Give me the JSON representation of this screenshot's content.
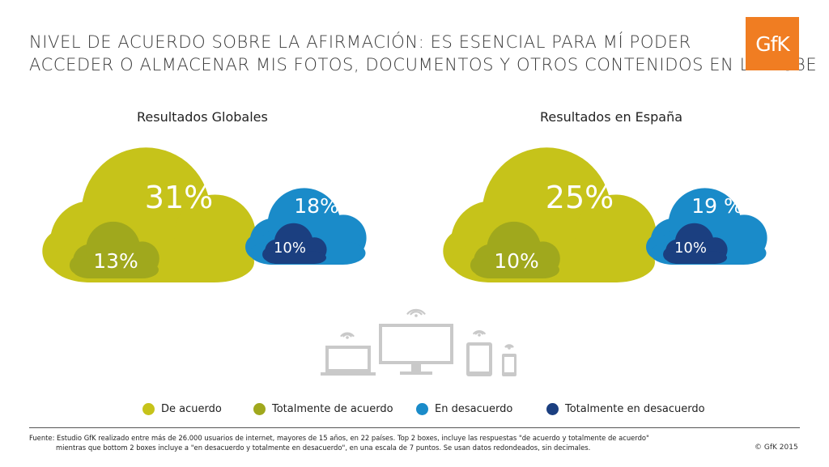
{
  "title": {
    "line1": "NIVEL DE ACUERDO SOBRE LA AFIRMACIÓN: ES ESENCIAL PARA MÍ PODER",
    "line2": "ACCEDER O ALMACENAR MIS FOTOS, DOCUMENTOS Y OTROS CONTENIDOS EN LA NUBE"
  },
  "logo": "GfK",
  "chart_data": [
    {
      "type": "other",
      "title": "Resultados Globales",
      "series": [
        {
          "name": "De acuerdo",
          "values": [
            31
          ],
          "label": "31%",
          "color": "#c6c31a"
        },
        {
          "name": "Totalmente de acuerdo",
          "values": [
            13
          ],
          "label": "13%",
          "color": "#a0a81d"
        },
        {
          "name": "En desacuerdo",
          "values": [
            18
          ],
          "label": "18%",
          "color": "#1a8bc9"
        },
        {
          "name": "Totalmente en desacuerdo",
          "values": [
            10
          ],
          "label": "10%",
          "color": "#1b3f80"
        }
      ]
    },
    {
      "type": "other",
      "title": "Resultados en España",
      "series": [
        {
          "name": "De acuerdo",
          "values": [
            25
          ],
          "label": "25%",
          "color": "#c6c31a"
        },
        {
          "name": "Totalmente de acuerdo",
          "values": [
            10
          ],
          "label": "10%",
          "color": "#a0a81d"
        },
        {
          "name": "En desacuerdo",
          "values": [
            19
          ],
          "label": "19 %",
          "color": "#1a8bc9"
        },
        {
          "name": "Totalmente en desacuerdo",
          "values": [
            10
          ],
          "label": "10%",
          "color": "#1b3f80"
        }
      ]
    }
  ],
  "legend": [
    {
      "label": "De acuerdo",
      "color": "#c6c31a"
    },
    {
      "label": "Totalmente de acuerdo",
      "color": "#a0a81d"
    },
    {
      "label": "En desacuerdo",
      "color": "#1a8bc9"
    },
    {
      "label": "Totalmente en desacuerdo",
      "color": "#1b3f80"
    }
  ],
  "source": {
    "line1": "Fuente: Estudio GfK realizado entre más de 26.000 usuarios de internet, mayores de 15 años, en 22 países. Top 2 boxes, incluye las respuestas \"de acuerdo y totalmente de acuerdo\"",
    "line2": "mientras que bottom 2 boxes incluye a \"en desacuerdo y totalmente en desacuerdo\", en una escala de 7 puntos. Se usan datos redondeados, sin decimales."
  },
  "copyright": "© GfK 2015"
}
